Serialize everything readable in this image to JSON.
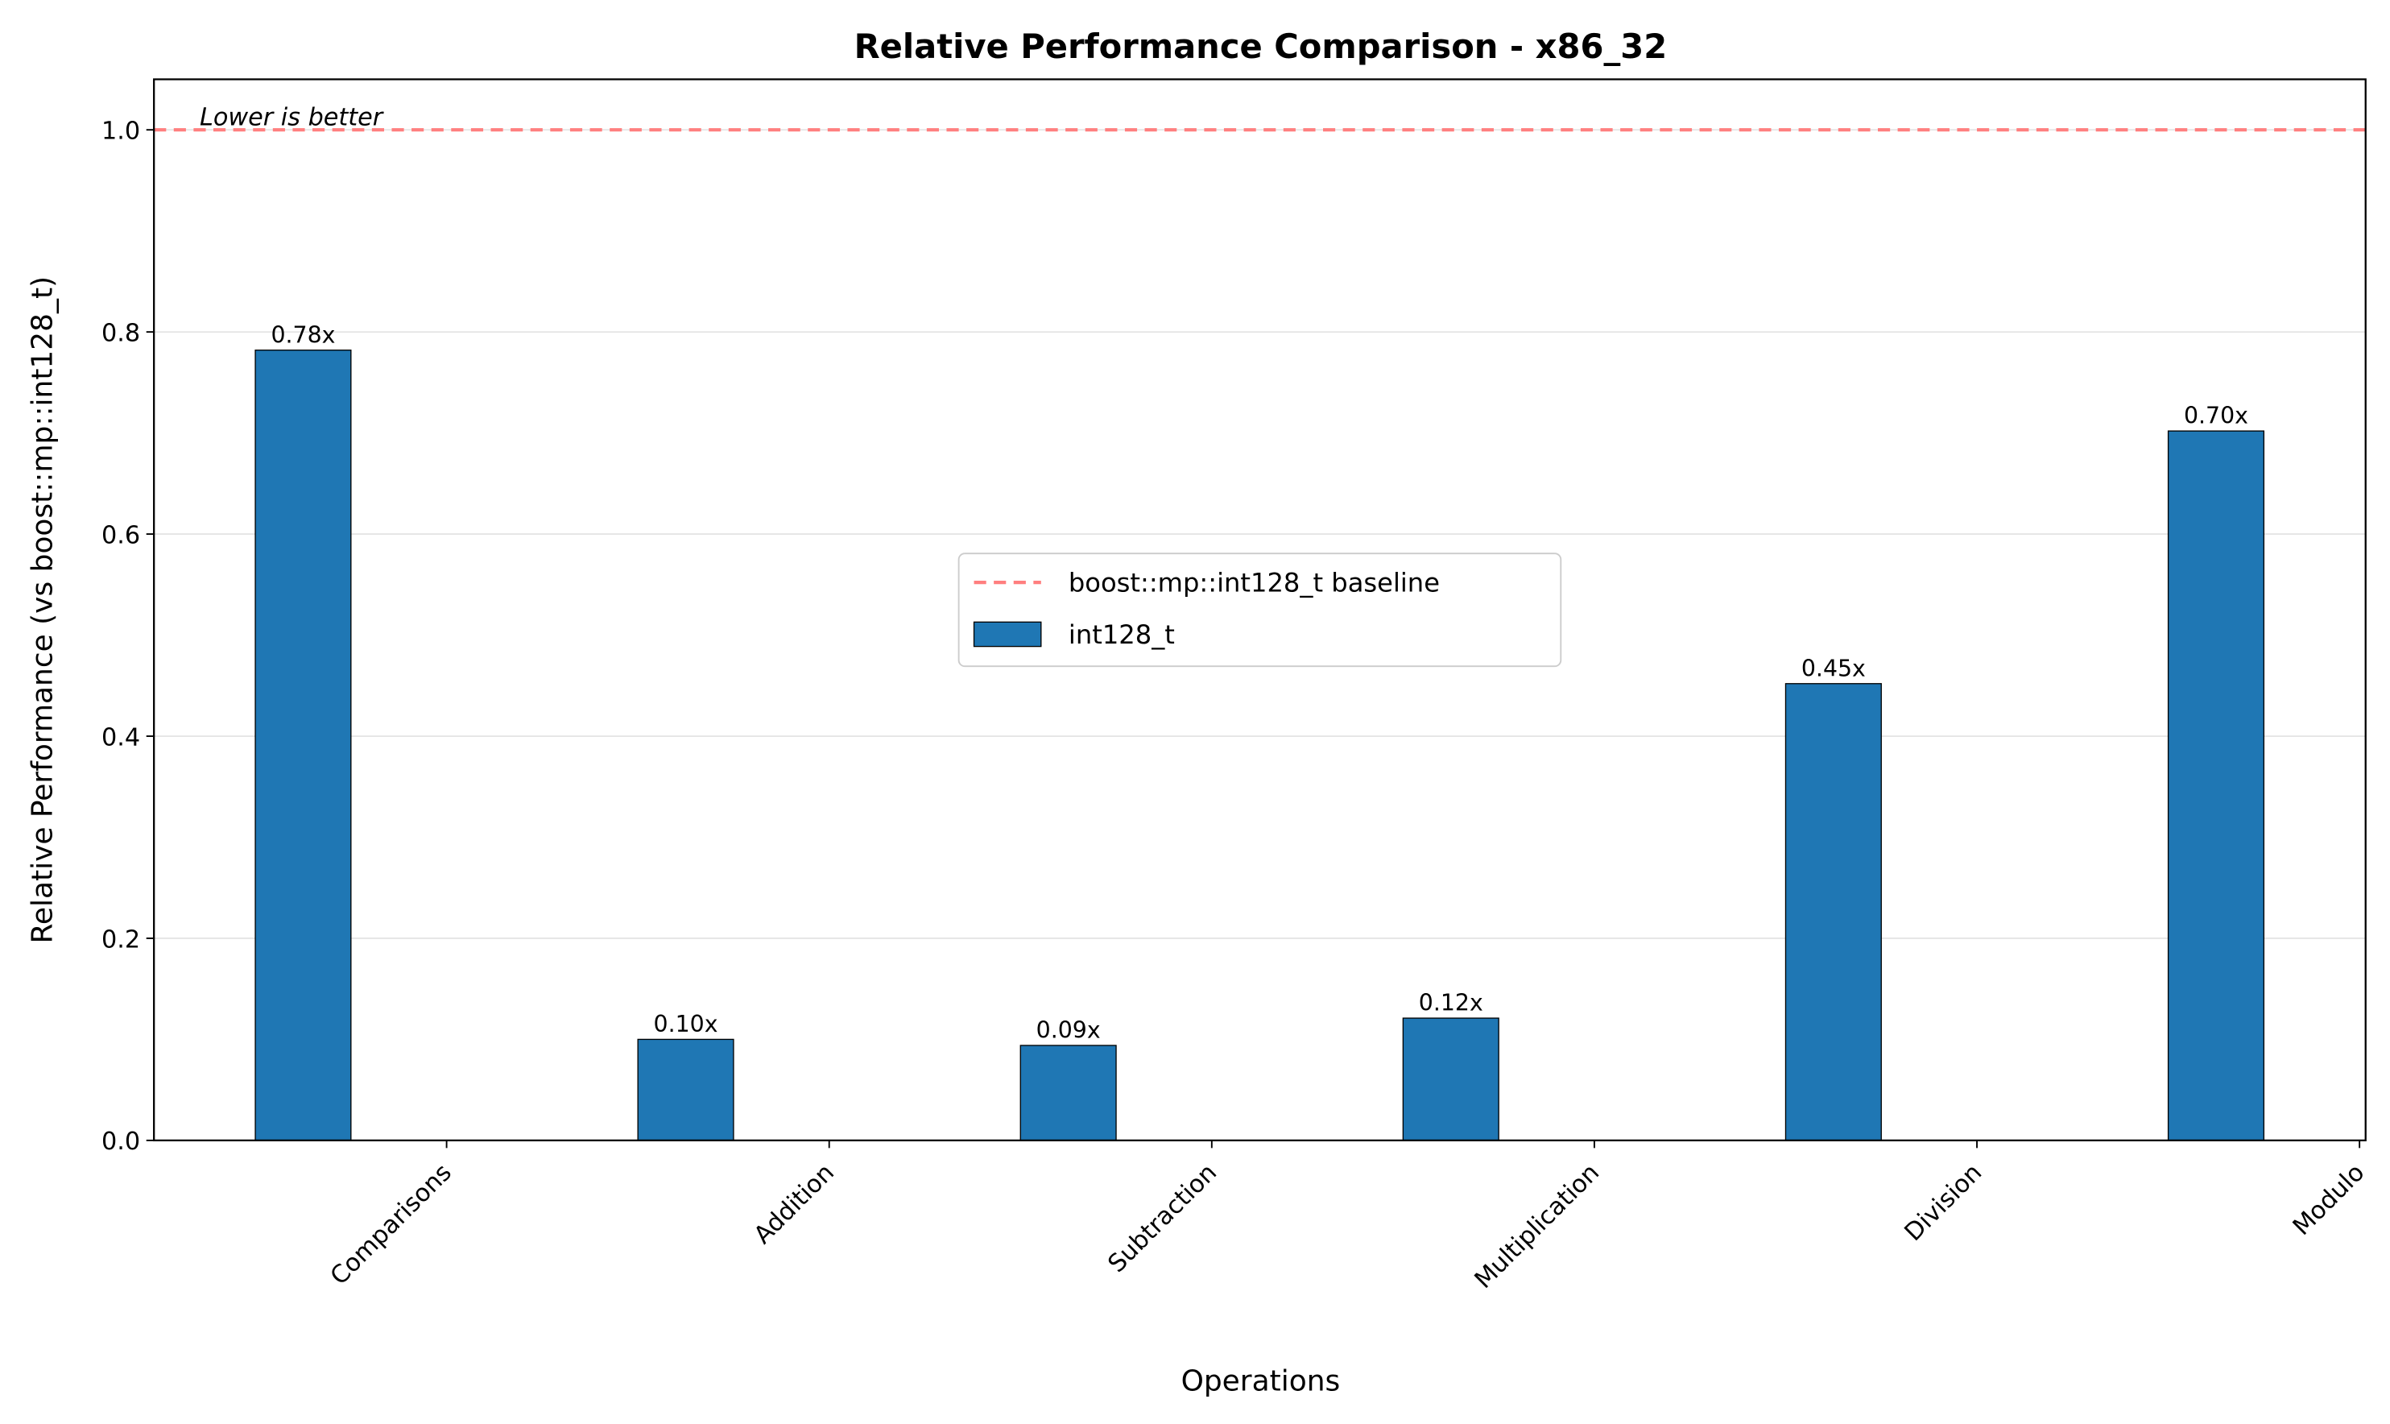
{
  "chart_data": {
    "type": "bar",
    "title": "Relative Performance Comparison - x86_32",
    "x_label": "Operations",
    "y_label": "Relative Performance (vs boost::mp::int128_t)",
    "categories": [
      "Comparisons",
      "Addition",
      "Subtraction",
      "Multiplication",
      "Division",
      "Modulo"
    ],
    "series": [
      {
        "name": "int128_t",
        "color": "#1f77b4",
        "values": [
          0.782,
          0.1,
          0.094,
          0.121,
          0.452,
          0.702
        ],
        "value_labels": [
          "0.78x",
          "0.10x",
          "0.09x",
          "0.12x",
          "0.45x",
          "0.70x"
        ]
      }
    ],
    "baseline": {
      "name": "boost::mp::int128_t baseline",
      "value": 1.0,
      "color": "#ff7f7f"
    },
    "annotation": "Lower is better",
    "ylim": [
      0,
      1.05
    ],
    "yticks": [
      {
        "value": 0,
        "label": "0.0"
      },
      0.2,
      0.4,
      0.6,
      0.8,
      {
        "value": 1,
        "label": "1.0"
      }
    ],
    "grid": true,
    "legend": "center"
  }
}
